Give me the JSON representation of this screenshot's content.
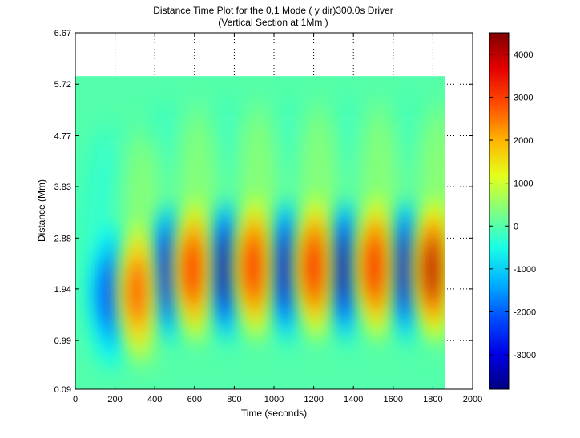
{
  "chart_data": {
    "type": "heatmap",
    "title": "Distance Time Plot for the 0,1 Mode ( y dir)300.0s Driver",
    "subtitle": "(Vertical Section at 1Mm )",
    "xlabel": "Time (seconds)",
    "ylabel": "Distance (Mm)",
    "xlim": [
      0,
      2000
    ],
    "ylim": [
      0.09,
      6.67
    ],
    "x_ticks": [
      0,
      200,
      400,
      600,
      800,
      1000,
      1200,
      1400,
      1600,
      1800,
      2000
    ],
    "y_ticks": [
      "0.09",
      "0.99",
      "1.94",
      "2.88",
      "3.83",
      "4.77",
      "5.72",
      "6.67"
    ],
    "data_extent": {
      "x": [
        0,
        1860
      ],
      "y": [
        0.09,
        5.87
      ]
    },
    "grid": true,
    "colorbar": {
      "colormap": "jet",
      "range": [
        -3800,
        4500
      ],
      "ticks": [
        -3000,
        -2000,
        -1000,
        0,
        1000,
        2000,
        3000,
        4000
      ]
    },
    "features": {
      "peaks": [
        {
          "time": 310,
          "distance": 1.9,
          "value": 2800
        },
        {
          "time": 590,
          "distance": 2.3,
          "value": 3300
        },
        {
          "time": 895,
          "distance": 2.35,
          "value": 3400
        },
        {
          "time": 1200,
          "distance": 2.35,
          "value": 3500
        },
        {
          "time": 1505,
          "distance": 2.35,
          "value": 3500
        },
        {
          "time": 1795,
          "distance": 2.3,
          "value": 4000
        }
      ],
      "troughs": [
        {
          "time": 170,
          "distance": 1.85,
          "value": -2200
        },
        {
          "time": 455,
          "distance": 2.25,
          "value": -2900
        },
        {
          "time": 745,
          "distance": 2.3,
          "value": -3300
        },
        {
          "time": 1050,
          "distance": 2.3,
          "value": -3100
        },
        {
          "time": 1345,
          "distance": 2.3,
          "value": -3300
        },
        {
          "time": 1650,
          "distance": 2.3,
          "value": -3100
        }
      ]
    }
  }
}
